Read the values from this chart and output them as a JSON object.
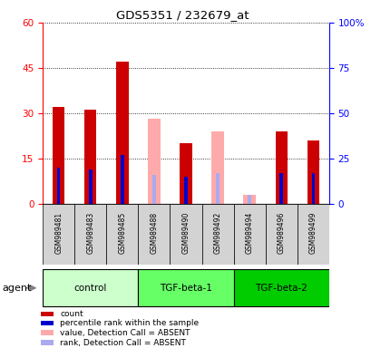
{
  "title": "GDS5351 / 232679_at",
  "samples": [
    "GSM989481",
    "GSM989483",
    "GSM989485",
    "GSM989488",
    "GSM989490",
    "GSM989492",
    "GSM989494",
    "GSM989496",
    "GSM989499"
  ],
  "groups": [
    {
      "name": "control",
      "color": "#ccffcc",
      "samples": [
        0,
        1,
        2
      ]
    },
    {
      "name": "TGF-beta-1",
      "color": "#66ff66",
      "samples": [
        3,
        4,
        5
      ]
    },
    {
      "name": "TGF-beta-2",
      "color": "#00cc00",
      "samples": [
        6,
        7,
        8
      ]
    }
  ],
  "count_values": [
    32,
    31,
    47,
    0,
    20,
    0,
    0,
    24,
    21
  ],
  "rank_values": [
    20,
    19,
    27,
    0,
    15,
    0,
    0,
    17,
    17
  ],
  "absent_value_values": [
    0,
    0,
    0,
    28,
    0,
    24,
    3,
    0,
    0
  ],
  "absent_rank_values": [
    0,
    0,
    0,
    16,
    0,
    17,
    5,
    0,
    0
  ],
  "count_color": "#cc0000",
  "rank_color": "#0000cc",
  "absent_value_color": "#ffaaaa",
  "absent_rank_color": "#aaaaee",
  "ylim": [
    0,
    60
  ],
  "yticks_left": [
    0,
    15,
    30,
    45,
    60
  ],
  "yticks_right": [
    0,
    25,
    50,
    75,
    100
  ],
  "bg_color": "#ffffff",
  "sample_bg": "#d3d3d3",
  "group_colors": [
    "#ccffcc",
    "#66ff66",
    "#00cc00"
  ]
}
